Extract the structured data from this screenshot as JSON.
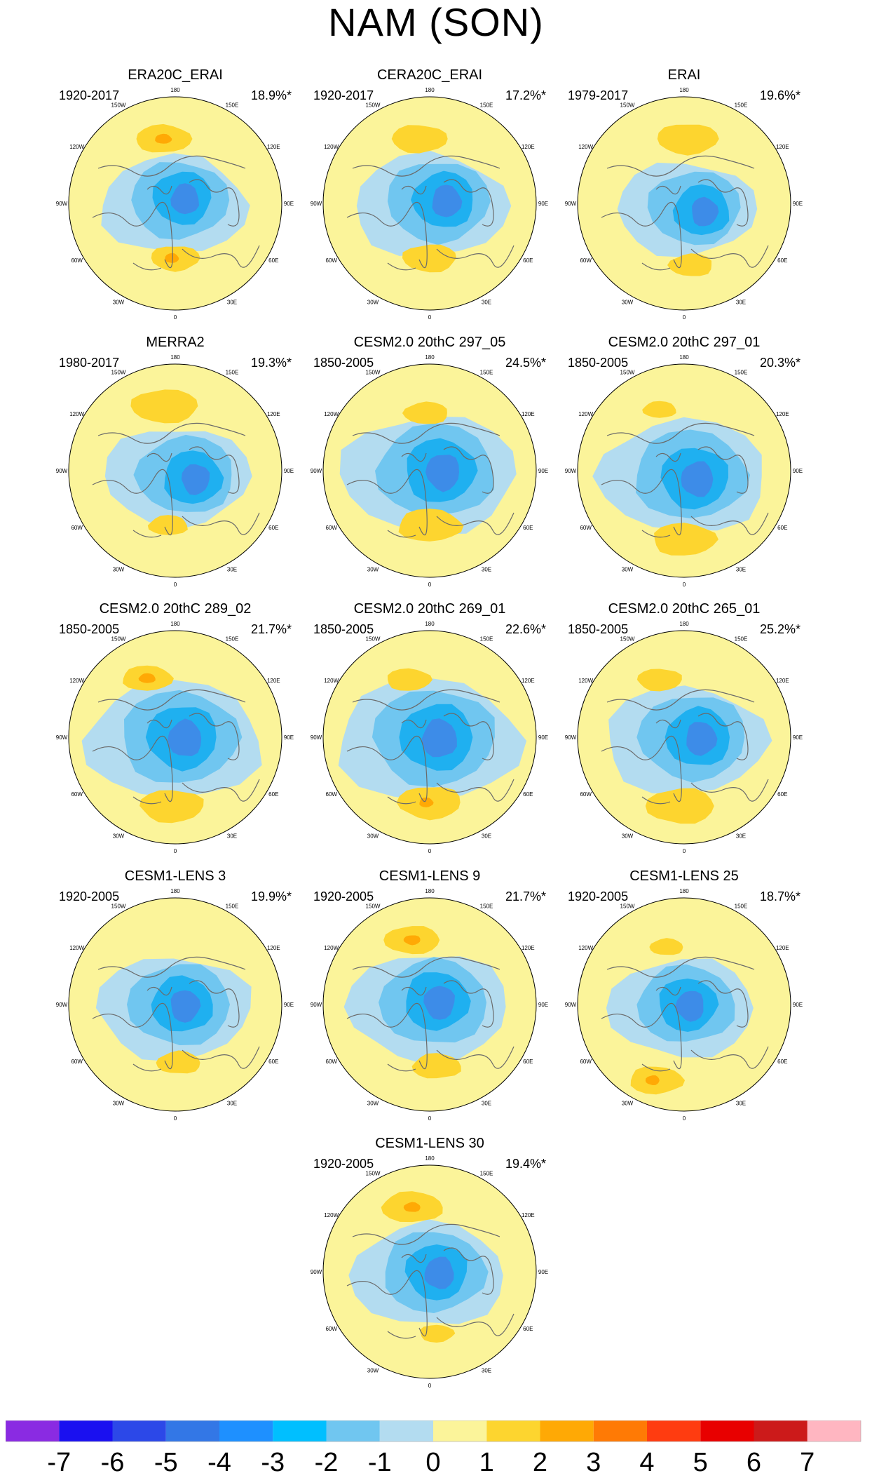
{
  "title": "NAM (SON)",
  "panels": [
    {
      "name": "ERA20C_ERAI",
      "years": "1920-2017",
      "pct": "18.9%*"
    },
    {
      "name": "CERA20C_ERAI",
      "years": "1920-2017",
      "pct": "17.2%*"
    },
    {
      "name": "ERAI",
      "years": "1979-2017",
      "pct": "19.6%*"
    },
    {
      "name": "MERRA2",
      "years": "1980-2017",
      "pct": "19.3%*"
    },
    {
      "name": "CESM2.0 20thC 297_05",
      "years": "1850-2005",
      "pct": "24.5%*"
    },
    {
      "name": "CESM2.0 20thC 297_01",
      "years": "1850-2005",
      "pct": "20.3%*"
    },
    {
      "name": "CESM2.0 20thC 289_02",
      "years": "1850-2005",
      "pct": "21.7%*"
    },
    {
      "name": "CESM2.0 20thC 269_01",
      "years": "1850-2005",
      "pct": "22.6%*"
    },
    {
      "name": "CESM2.0 20thC 265_01",
      "years": "1850-2005",
      "pct": "25.2%*"
    },
    {
      "name": "CESM1-LENS 3",
      "years": "1920-2005",
      "pct": "19.9%*"
    },
    {
      "name": "CESM1-LENS 9",
      "years": "1920-2005",
      "pct": "21.7%*"
    },
    {
      "name": "CESM1-LENS 25",
      "years": "1920-2005",
      "pct": "18.7%*"
    },
    {
      "name": "CESM1-LENS 30",
      "years": "1920-2005",
      "pct": "19.4%*"
    }
  ],
  "lon_labels": [
    "180",
    "150E",
    "120E",
    "90E",
    "60E",
    "30E",
    "0",
    "30W",
    "60W",
    "90W",
    "120W",
    "150W"
  ],
  "colorbar": {
    "ticks": [
      "-7",
      "-6",
      "-5",
      "-4",
      "-3",
      "-2",
      "-1",
      "0",
      "1",
      "2",
      "3",
      "4",
      "5",
      "6",
      "7"
    ],
    "colors": [
      "#8a2be2",
      "#1a10f0",
      "#2c48e8",
      "#3377e6",
      "#1e90ff",
      "#00bfff",
      "#70c6f0",
      "#b3dcf0",
      "#fbf49a",
      "#fdd52f",
      "#ffa905",
      "#ff7a05",
      "#ff3c10",
      "#e80000",
      "#cc1a1a",
      "#ffb6c1"
    ]
  },
  "colors": {
    "land_line": "#6a6a6a",
    "pos1": "#fbf49a",
    "pos2": "#fdd52f",
    "pos3": "#ffa905",
    "neg1": "#b3dcf0",
    "neg2": "#70c6f0",
    "neg3": "#1fb0f0",
    "neg4": "#3d8ce8"
  }
}
